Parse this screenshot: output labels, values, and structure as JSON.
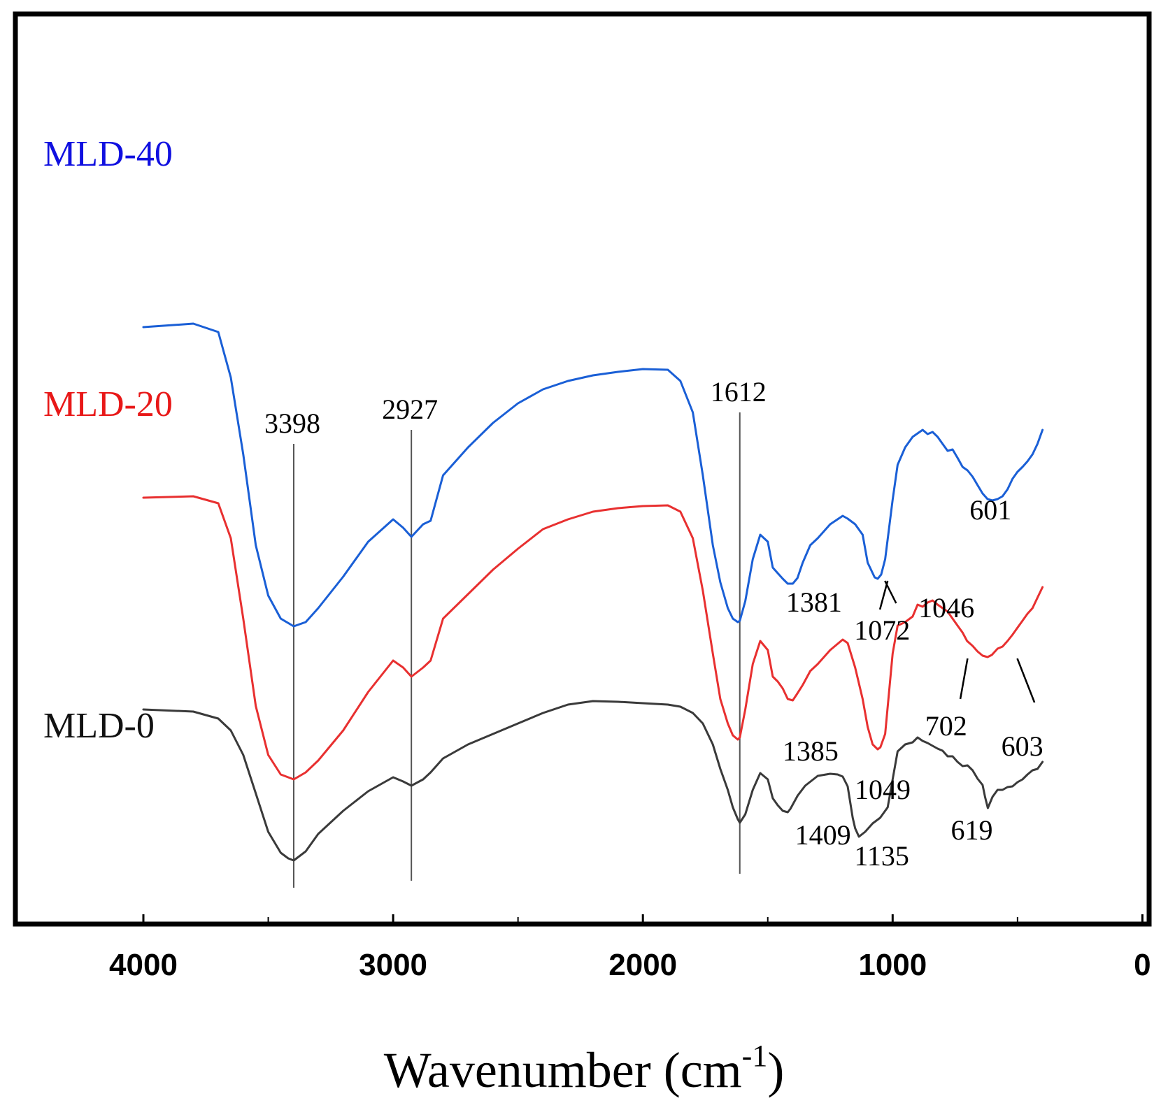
{
  "chart_data": {
    "type": "line",
    "title": "",
    "xlabel": "Wavenumber (cm",
    "xlabel_sup": "-1",
    "xlabel_close": ")",
    "ylabel": "",
    "xlim": [
      4500,
      0
    ],
    "x_reversed": true,
    "xticks": [
      4000,
      3000,
      2000,
      1000,
      0
    ],
    "xtick_labels": [
      "4000",
      "3000",
      "2000",
      "1000",
      "0"
    ],
    "y_units": "relative transmittance (offset stacked)",
    "ylim": [
      0,
      100
    ],
    "series": [
      {
        "name": "MLD-40",
        "color": "#1a5fd6",
        "label_color": "#1010e0",
        "x": [
          4000,
          3800,
          3700,
          3650,
          3600,
          3550,
          3500,
          3450,
          3398,
          3350,
          3300,
          3200,
          3100,
          3000,
          2960,
          2927,
          2880,
          2850,
          2800,
          2700,
          2600,
          2500,
          2400,
          2300,
          2200,
          2100,
          2000,
          1900,
          1850,
          1800,
          1760,
          1720,
          1690,
          1660,
          1640,
          1620,
          1612,
          1590,
          1560,
          1530,
          1500,
          1480,
          1460,
          1440,
          1420,
          1400,
          1381,
          1360,
          1330,
          1300,
          1250,
          1200,
          1180,
          1150,
          1120,
          1100,
          1072,
          1060,
          1046,
          1030,
          1000,
          980,
          950,
          920,
          900,
          880,
          860,
          840,
          820,
          800,
          780,
          760,
          740,
          720,
          700,
          680,
          660,
          640,
          620,
          601,
          580,
          560,
          540,
          520,
          500,
          480,
          460,
          440,
          420,
          400
        ],
        "y": [
          86.2,
          86.7,
          85.5,
          79,
          68,
          55,
          47.8,
          44.5,
          43.4,
          44,
          46,
          50.5,
          55.5,
          58.7,
          57.5,
          56.2,
          58,
          58.5,
          65,
          69,
          72.5,
          75.3,
          77.3,
          78.5,
          79.3,
          79.8,
          80.2,
          80.1,
          78.5,
          74,
          65,
          55,
          49.7,
          46,
          44.5,
          44,
          44.2,
          47,
          53,
          56.5,
          55.5,
          51.8,
          51,
          50.2,
          49.5,
          49.5,
          50.3,
          52.5,
          55,
          56,
          58,
          59.2,
          58.8,
          58,
          56.5,
          52.5,
          50.4,
          50.2,
          50.8,
          53,
          61.5,
          66.5,
          69,
          70.5,
          71,
          71.5,
          70.9,
          71.2,
          70.5,
          69.5,
          68.5,
          68.7,
          67.5,
          66.2,
          65.7,
          64.8,
          63.6,
          62.4,
          61.6,
          61.4,
          61.6,
          62,
          63,
          64.5,
          65.5,
          66.2,
          67,
          68,
          69.5,
          71.5
        ]
      },
      {
        "name": "MLD-20",
        "color": "#e83030",
        "label_color": "#e81818",
        "x": [
          4000,
          3800,
          3700,
          3650,
          3600,
          3550,
          3500,
          3450,
          3398,
          3350,
          3300,
          3200,
          3100,
          3000,
          2960,
          2927,
          2880,
          2850,
          2800,
          2700,
          2600,
          2500,
          2400,
          2300,
          2200,
          2100,
          2000,
          1900,
          1850,
          1800,
          1760,
          1720,
          1690,
          1660,
          1640,
          1620,
          1612,
          1590,
          1560,
          1530,
          1500,
          1480,
          1460,
          1440,
          1420,
          1400,
          1385,
          1360,
          1330,
          1300,
          1250,
          1200,
          1180,
          1150,
          1120,
          1100,
          1080,
          1060,
          1049,
          1030,
          1000,
          980,
          950,
          920,
          900,
          880,
          860,
          840,
          820,
          800,
          780,
          760,
          740,
          720,
          702,
          680,
          660,
          640,
          620,
          603,
          580,
          560,
          540,
          520,
          500,
          480,
          460,
          440,
          420,
          400
        ],
        "y": [
          61.8,
          62,
          61,
          56,
          44.5,
          32,
          25,
          22.2,
          21.5,
          22.5,
          24.2,
          28.5,
          34,
          38.5,
          37.5,
          36.2,
          37.5,
          38.5,
          44.5,
          48,
          51.5,
          54.5,
          57.3,
          58.7,
          59.8,
          60.3,
          60.6,
          60.7,
          59.8,
          56,
          48.5,
          39.5,
          33,
          29.5,
          27.8,
          27.2,
          27.5,
          31.5,
          38,
          41.3,
          40,
          36.2,
          35.5,
          34.5,
          33,
          32.8,
          33.6,
          35,
          37,
          38,
          40,
          41.5,
          41,
          37.5,
          33,
          29,
          26.5,
          25.8,
          26.1,
          28,
          39.5,
          43.5,
          44,
          44.8,
          46.5,
          46.2,
          46.8,
          47.1,
          46.5,
          46,
          45.5,
          44.5,
          43.5,
          42.5,
          41.3,
          40.6,
          39.8,
          39.2,
          39,
          39.3,
          40.2,
          40.5,
          41.3,
          42.2,
          43.2,
          44.2,
          45.2,
          46,
          47.5,
          49
        ]
      },
      {
        "name": "MLD-0",
        "color": "#3a3a3a",
        "label_color": "#111111",
        "x": [
          4000,
          3800,
          3700,
          3650,
          3600,
          3550,
          3500,
          3450,
          3420,
          3398,
          3350,
          3300,
          3200,
          3100,
          3000,
          2960,
          2927,
          2880,
          2850,
          2800,
          2700,
          2600,
          2500,
          2400,
          2300,
          2200,
          2100,
          2000,
          1900,
          1850,
          1800,
          1760,
          1720,
          1690,
          1660,
          1640,
          1620,
          1612,
          1590,
          1560,
          1530,
          1500,
          1480,
          1460,
          1440,
          1420,
          1409,
          1380,
          1350,
          1300,
          1250,
          1220,
          1200,
          1180,
          1160,
          1150,
          1135,
          1110,
          1080,
          1050,
          1020,
          1000,
          980,
          950,
          920,
          900,
          880,
          860,
          840,
          820,
          800,
          780,
          760,
          740,
          720,
          700,
          680,
          660,
          640,
          630,
          619,
          600,
          580,
          560,
          540,
          520,
          500,
          480,
          460,
          440,
          420,
          400
        ],
        "y": [
          31.5,
          31.2,
          30.2,
          28.5,
          25,
          19.5,
          14,
          11,
          10.2,
          9.9,
          11.2,
          13.7,
          17,
          19.8,
          21.8,
          21.2,
          20.6,
          21.5,
          22.5,
          24.5,
          26.5,
          28,
          29.5,
          31,
          32.2,
          32.7,
          32.6,
          32.4,
          32.2,
          31.9,
          31,
          29.5,
          26.5,
          23,
          20,
          17.5,
          15.8,
          15.3,
          16.5,
          20,
          22.4,
          21.5,
          18.8,
          17.8,
          17,
          16.8,
          17.3,
          19.2,
          20.6,
          22,
          22.3,
          22.2,
          21.9,
          20.5,
          16,
          14.5,
          13.3,
          14,
          15.2,
          16,
          17.5,
          21.5,
          25.5,
          26.5,
          26.8,
          27.5,
          27,
          26.7,
          26.3,
          25.9,
          25.6,
          24.8,
          24.8,
          24,
          23.4,
          23.5,
          22.8,
          21.6,
          20.7,
          19,
          17.4,
          19,
          20,
          20,
          20.4,
          20.5,
          21.1,
          21.5,
          22.2,
          22.8,
          23,
          24
        ]
      }
    ],
    "reference_lines": [
      {
        "x": 3398,
        "label": "3398",
        "y_from": 6,
        "y_to": 69.5
      },
      {
        "x": 2927,
        "label": "2927",
        "y_from": 7,
        "y_to": 71.5
      },
      {
        "x": 1612,
        "label": "1612",
        "y_from": 8,
        "y_to": 74
      }
    ],
    "annotations": [
      {
        "text": "1381",
        "x": 1315,
        "y": 45.5
      },
      {
        "text": "1072",
        "x": 1042,
        "y": 41.5
      },
      {
        "text": "1046",
        "x": 785,
        "y": 44.7
      },
      {
        "text": "601",
        "x": 608,
        "y": 58.7
      },
      {
        "text": "1385",
        "x": 1329,
        "y": 24.2
      },
      {
        "text": "1049",
        "x": 1040,
        "y": 18.7
      },
      {
        "text": "702",
        "x": 786,
        "y": 27.8
      },
      {
        "text": "603",
        "x": 481,
        "y": 24.9
      },
      {
        "text": "1409",
        "x": 1279,
        "y": 12.2
      },
      {
        "text": "1135",
        "x": 1044,
        "y": 9.2
      },
      {
        "text": "619",
        "x": 683,
        "y": 12.9
      }
    ],
    "leader_lines": [
      {
        "from": [
          1051,
          45.8
        ],
        "to": [
          1020,
          49.9
        ]
      },
      {
        "from": [
          986,
          46.7
        ],
        "to": [
          1031,
          49.9
        ]
      },
      {
        "from": [
          729,
          33.0
        ],
        "to": [
          700,
          38.8
        ]
      },
      {
        "from": [
          432,
          32.5
        ],
        "to": [
          501,
          38.8
        ]
      }
    ],
    "legend": "left labels"
  }
}
